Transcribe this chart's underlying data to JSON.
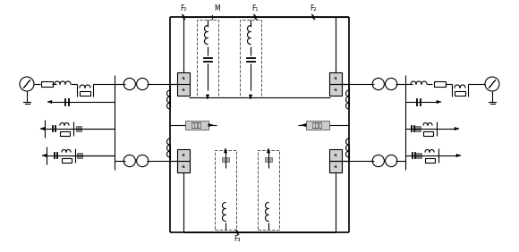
{
  "bg_color": "#ffffff",
  "line_color": "#000000",
  "lw": 0.8,
  "lw_thick": 1.2,
  "label_F0": "F₀",
  "label_F1": "F₁",
  "label_F2": "F₂",
  "label_F3": "F₃",
  "label_M": "M",
  "label_jiediji": "接地极",
  "label_jiebiji": "接比极",
  "valve_face": "#d0d0d0",
  "valve_edge": "#333333",
  "dashed_color": "#555555",
  "label_box_face": "#cccccc",
  "label_box_edge": "#555555"
}
